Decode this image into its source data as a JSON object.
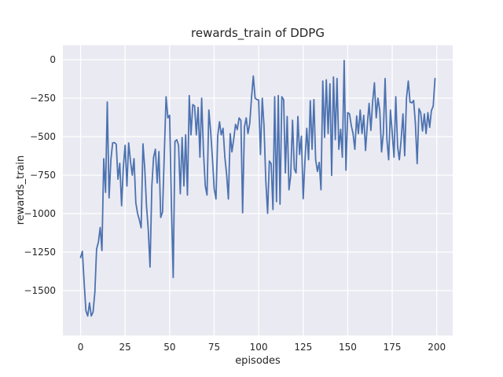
{
  "chart_data": {
    "type": "line",
    "title": "rewards_train of DDPG",
    "xlabel": "episodes",
    "ylabel": "rewards_train",
    "x_ticks": [
      0,
      25,
      50,
      75,
      100,
      125,
      150,
      175,
      200
    ],
    "y_ticks": [
      0,
      -250,
      -500,
      -750,
      -1000,
      -1250,
      -1500
    ],
    "xlim": [
      -9.95,
      208.95
    ],
    "ylim": [
      -1791.8,
      93.9
    ],
    "grid": true,
    "legend": null,
    "line_color": "#4c72b0",
    "plot_bg": "#eaeaf2",
    "grid_color": "#ffffff",
    "text_color": "#262626",
    "series": [
      {
        "name": "rewards_train",
        "x": {
          "start": 0,
          "step": 1,
          "count": 200
        },
        "y": [
          -1285,
          -1245,
          -1450,
          -1630,
          -1665,
          -1580,
          -1665,
          -1640,
          -1510,
          -1230,
          -1184,
          -1090,
          -1240,
          -643,
          -862,
          -275,
          -898,
          -650,
          -541,
          -538,
          -550,
          -776,
          -673,
          -949,
          -700,
          -556,
          -821,
          -541,
          -658,
          -750,
          -643,
          -929,
          -1000,
          -1040,
          -1092,
          -547,
          -700,
          -949,
          -1100,
          -1347,
          -821,
          -633,
          -582,
          -801,
          -597,
          -1025,
          -990,
          -620,
          -241,
          -378,
          -361,
          -950,
          -1415,
          -531,
          -520,
          -556,
          -871,
          -505,
          -820,
          -488,
          -879,
          -233,
          -488,
          -292,
          -301,
          -488,
          -310,
          -633,
          -250,
          -600,
          -820,
          -879,
          -327,
          -463,
          -633,
          -837,
          -905,
          -497,
          -403,
          -488,
          -446,
          -633,
          -743,
          -905,
          -480,
          -599,
          -514,
          -420,
          -454,
          -378,
          -395,
          -995,
          -437,
          -378,
          -480,
          -412,
          -241,
          -106,
          -250,
          -259,
          -262,
          -616,
          -250,
          -429,
          -786,
          -998,
          -658,
          -675,
          -973,
          -241,
          -922,
          -233,
          -939,
          -241,
          -259,
          -735,
          -369,
          -845,
          -752,
          -394,
          -709,
          -735,
          -369,
          -616,
          -497,
          -903,
          -658,
          -446,
          -650,
          -267,
          -582,
          -259,
          -650,
          -726,
          -667,
          -845,
          -139,
          -505,
          -131,
          -480,
          -157,
          -752,
          -112,
          -520,
          -122,
          -582,
          -452,
          -633,
          -5,
          -718,
          -344,
          -352,
          -429,
          -480,
          -582,
          -366,
          -480,
          -327,
          -480,
          -361,
          -590,
          -420,
          -284,
          -459,
          -276,
          -150,
          -378,
          -250,
          -330,
          -599,
          -480,
          -122,
          -520,
          -650,
          -327,
          -480,
          -633,
          -241,
          -565,
          -650,
          -520,
          -352,
          -624,
          -250,
          -139,
          -276,
          -280,
          -265,
          -412,
          -675,
          -318,
          -344,
          -463,
          -352,
          -480,
          -344,
          -440,
          -331,
          -301,
          -122
        ]
      }
    ]
  }
}
